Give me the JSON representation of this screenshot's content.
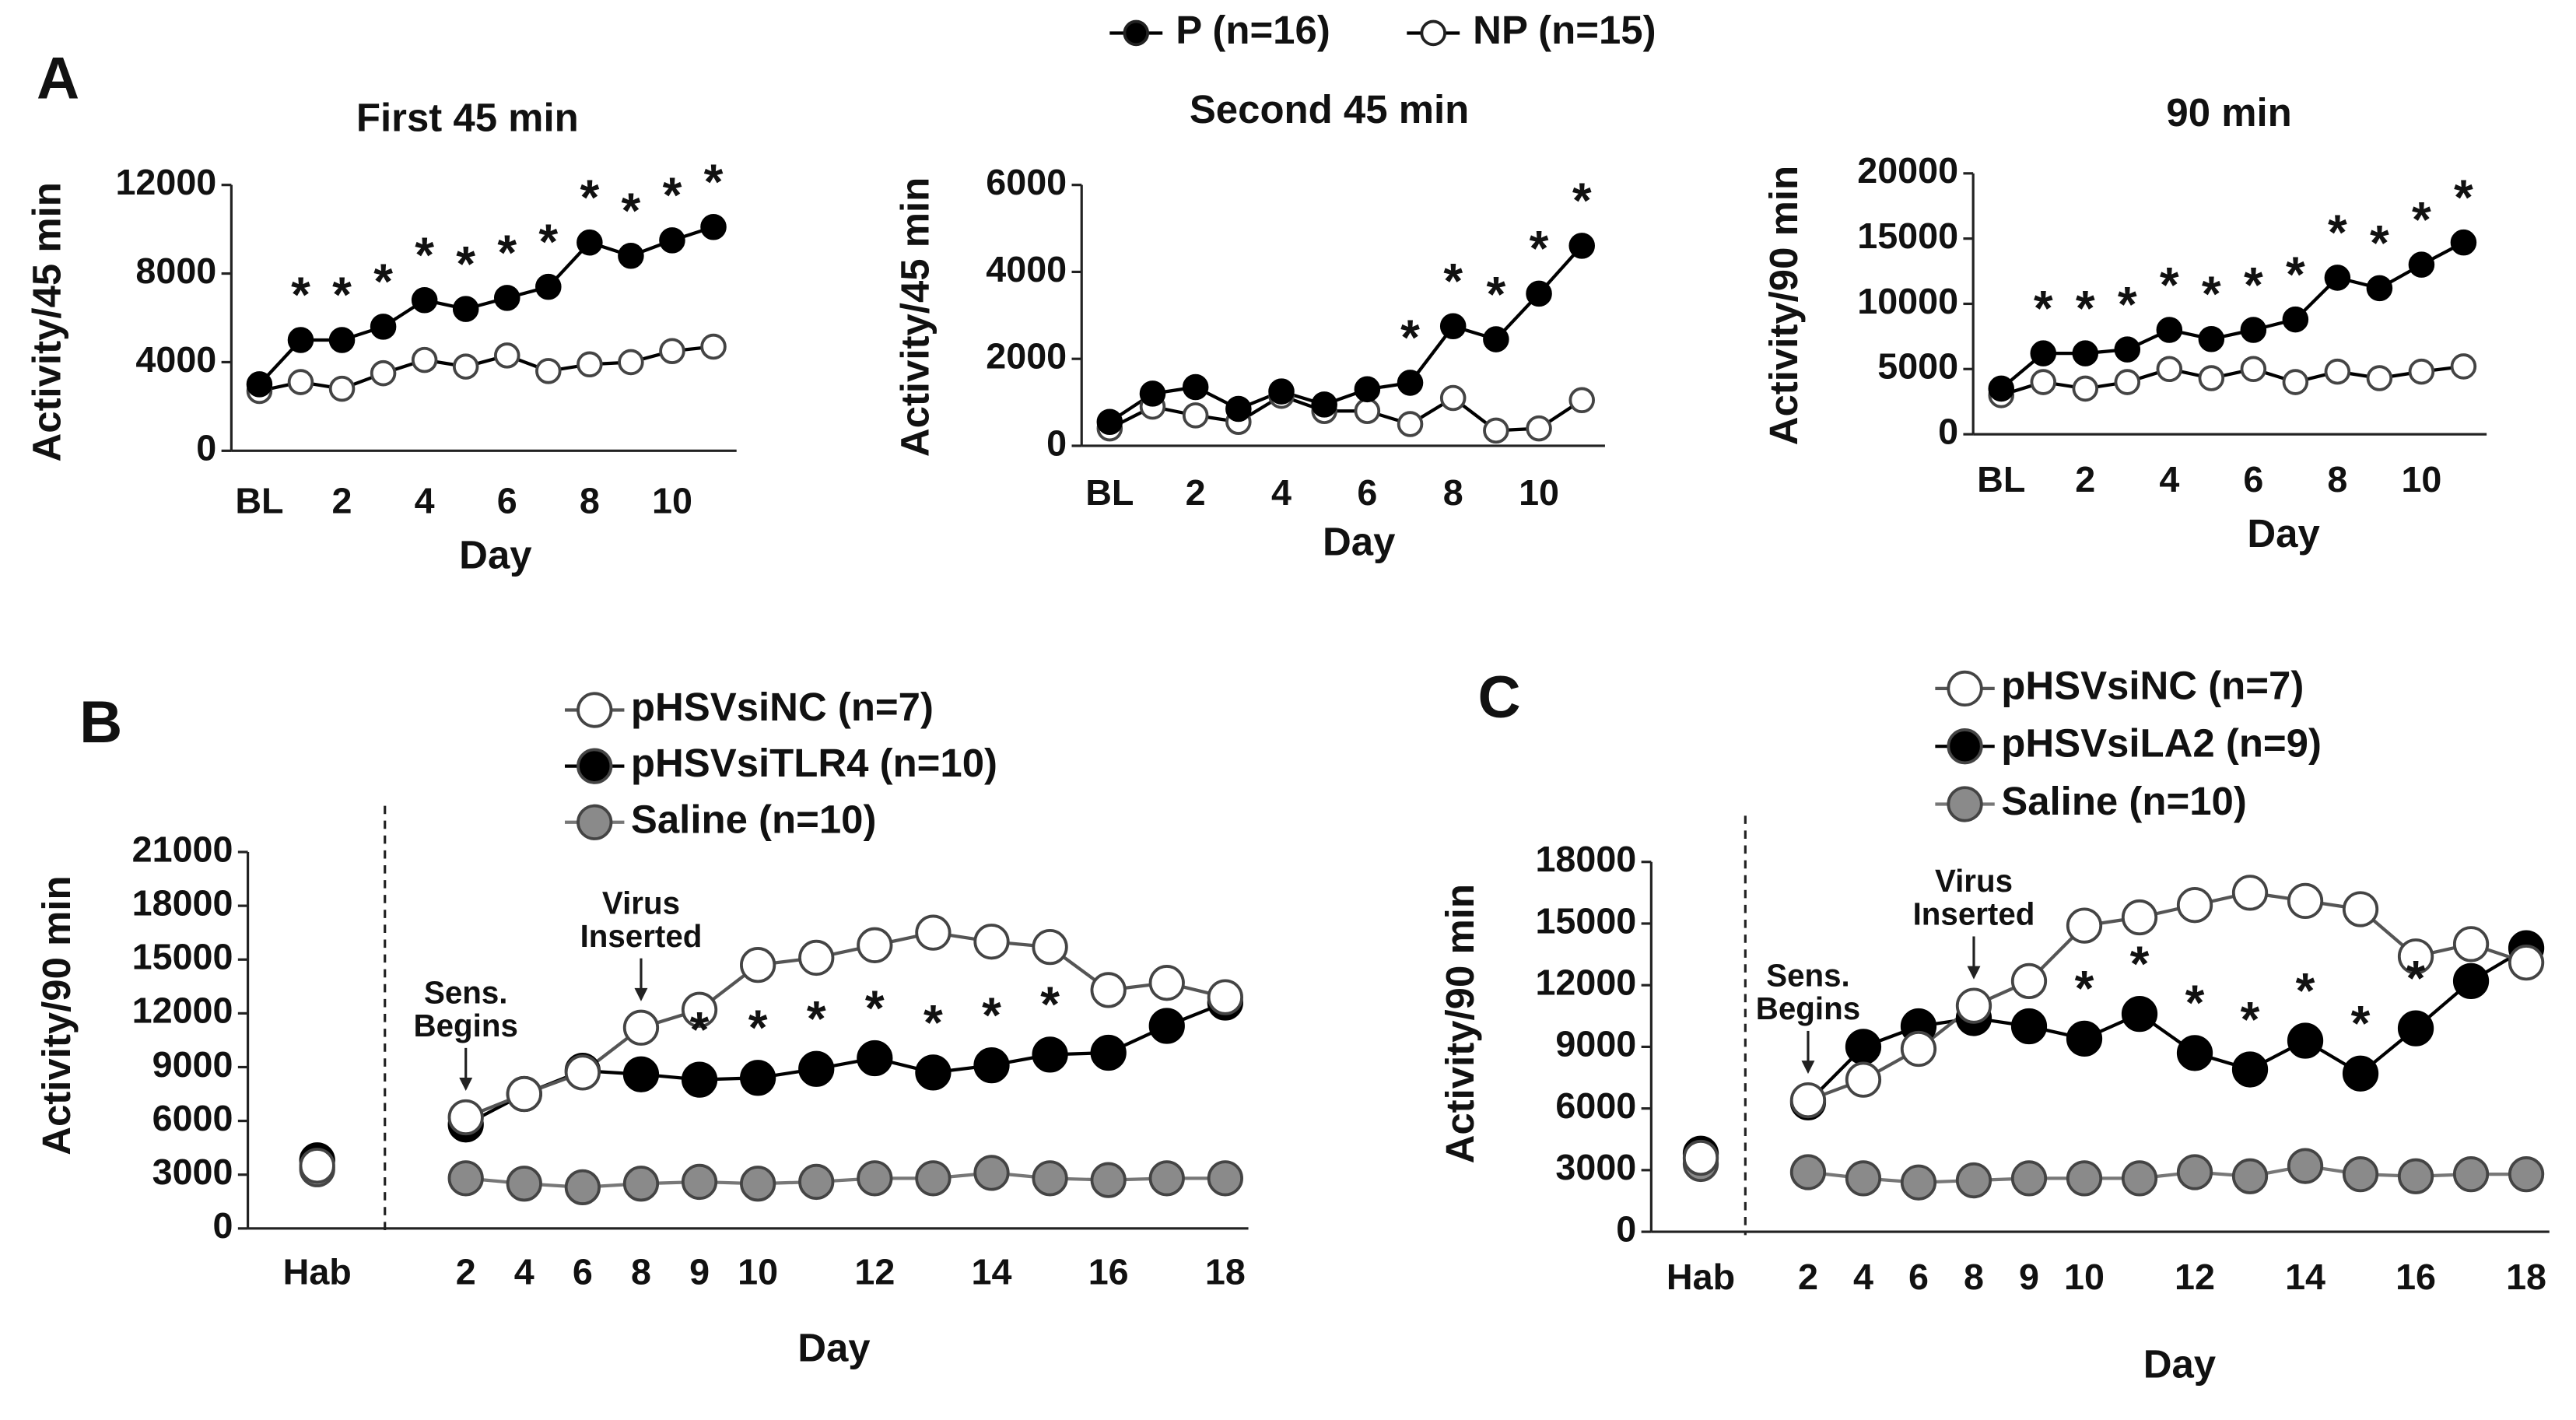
{
  "panels": [
    "A",
    "B",
    "C"
  ],
  "chart_data": [
    {
      "type": "line",
      "title": "First 45 min",
      "ylabel": "Activity/45 min",
      "xlabel": "Day",
      "categories": [
        "BL",
        null,
        "2",
        null,
        "4",
        null,
        "6",
        null,
        "8",
        null,
        "10",
        null
      ],
      "ylim": [
        0,
        12000
      ],
      "yticks": [
        0,
        4000,
        8000,
        12000
      ],
      "series": [
        {
          "name": "P (n=16)",
          "color": "#000000",
          "line_color": "#000000",
          "values": [
            3000,
            5000,
            5000,
            5600,
            6800,
            6400,
            6900,
            7400,
            9400,
            8800,
            9500,
            10100
          ],
          "significance": [
            null,
            "*",
            "*",
            "*",
            "*",
            "*",
            "*",
            "*",
            "*",
            "*",
            "*",
            "*"
          ]
        },
        {
          "name": "NP (n=15)",
          "color": "#ffffff",
          "line_color": "#000000",
          "values": [
            2700,
            3100,
            2800,
            3500,
            4100,
            3800,
            4300,
            3600,
            3900,
            4000,
            4500,
            4700
          ]
        }
      ]
    },
    {
      "type": "line",
      "title": "Second 45 min",
      "ylabel": "Activity/45 min",
      "xlabel": "Day",
      "categories": [
        "BL",
        null,
        "2",
        null,
        "4",
        null,
        "6",
        null,
        "8",
        null,
        "10",
        null
      ],
      "ylim": [
        0,
        6000
      ],
      "yticks": [
        0,
        2000,
        4000,
        6000
      ],
      "series": [
        {
          "color": "#000000",
          "line_color": "#000000",
          "values": [
            550,
            1200,
            1350,
            850,
            1250,
            950,
            1300,
            1450,
            2750,
            2450,
            3500,
            4600
          ],
          "significance": [
            null,
            null,
            null,
            null,
            null,
            null,
            null,
            "*",
            "*",
            "*",
            "*",
            "*"
          ]
        },
        {
          "color": "#ffffff",
          "line_color": "#000000",
          "values": [
            400,
            900,
            700,
            550,
            1150,
            800,
            800,
            500,
            1100,
            350,
            400,
            1050
          ]
        }
      ]
    },
    {
      "type": "line",
      "title": "90 min",
      "ylabel": "Activity/90 min",
      "xlabel": "Day",
      "categories": [
        "BL",
        null,
        "2",
        null,
        "4",
        null,
        "6",
        null,
        "8",
        null,
        "10",
        null
      ],
      "ylim": [
        0,
        20000
      ],
      "yticks": [
        0,
        5000,
        10000,
        15000,
        20000
      ],
      "series": [
        {
          "color": "#000000",
          "line_color": "#000000",
          "values": [
            3500,
            6200,
            6200,
            6500,
            8000,
            7300,
            8000,
            8800,
            12000,
            11200,
            13000,
            14700
          ],
          "significance": [
            null,
            "*",
            "*",
            "*",
            "*",
            "*",
            "*",
            "*",
            "*",
            "*",
            "*",
            "*"
          ]
        },
        {
          "color": "#ffffff",
          "line_color": "#000000",
          "values": [
            3000,
            4000,
            3500,
            4000,
            5000,
            4300,
            5000,
            4000,
            4800,
            4300,
            4800,
            5200
          ]
        }
      ]
    },
    {
      "type": "line",
      "ylabel": "Activity/90 min",
      "xlabel": "Day",
      "divider": true,
      "categories": [
        "Hab",
        "2",
        "4",
        "6",
        "8",
        "9",
        "10",
        null,
        "12",
        null,
        "14",
        null,
        "16",
        null,
        "18"
      ],
      "ylim": [
        0,
        21000
      ],
      "yticks": [
        0,
        3000,
        6000,
        9000,
        12000,
        15000,
        18000,
        21000
      ],
      "series": [
        {
          "name": "pHSVsiNC (n=7)",
          "color": "#ffffff",
          "line_color": "#555555",
          "values": [
            3500,
            6200,
            7500,
            8700,
            11200,
            12200,
            14700,
            15100,
            15800,
            16500,
            16000,
            15700,
            13300,
            13700,
            12900
          ]
        },
        {
          "name": "pHSVsiTLR4 (n=10)",
          "color": "#000000",
          "line_color": "#000000",
          "values": [
            3800,
            5800,
            7500,
            8800,
            8600,
            8300,
            8400,
            8900,
            9500,
            8700,
            9100,
            9700,
            9800,
            11300,
            12600
          ],
          "significance": [
            null,
            null,
            null,
            null,
            null,
            "*",
            "*",
            "*",
            "*",
            "*",
            "*",
            "*",
            null,
            null,
            null
          ]
        },
        {
          "name": "Saline (n=10)",
          "color": "#8a8a8a",
          "line_color": "#777777",
          "values": [
            3300,
            2800,
            2500,
            2300,
            2500,
            2600,
            2500,
            2600,
            2800,
            2800,
            3100,
            2800,
            2700,
            2800,
            2800
          ]
        }
      ],
      "annotations": [
        {
          "lines": [
            "Sens.",
            "Begins"
          ],
          "x": "2"
        },
        {
          "lines": [
            "Virus",
            "Inserted"
          ],
          "x": "8"
        }
      ]
    },
    {
      "type": "line",
      "ylabel": "Activity/90 min",
      "xlabel": "Day",
      "divider": true,
      "categories": [
        "Hab",
        "2",
        "4",
        "6",
        "8",
        "9",
        "10",
        null,
        "12",
        null,
        "14",
        null,
        "16",
        null,
        "18"
      ],
      "ylim": [
        0,
        18000
      ],
      "yticks": [
        0,
        3000,
        6000,
        9000,
        12000,
        15000,
        18000
      ],
      "series": [
        {
          "name": "pHSVsiNC (n=7)",
          "color": "#ffffff",
          "line_color": "#555555",
          "values": [
            3600,
            6400,
            7400,
            8900,
            11000,
            12200,
            14900,
            15300,
            15900,
            16500,
            16100,
            15700,
            13400,
            14000,
            13100
          ]
        },
        {
          "name": "pHSVsiLA2 (n=9)",
          "color": "#000000",
          "line_color": "#000000",
          "values": [
            3800,
            6300,
            9000,
            10000,
            10400,
            10000,
            9400,
            10600,
            8700,
            7900,
            9300,
            7700,
            9900,
            12200,
            13800
          ],
          "significance": [
            null,
            null,
            null,
            null,
            null,
            null,
            "*",
            "*",
            "*",
            "*",
            "*",
            "*",
            "*",
            null,
            null
          ]
        },
        {
          "name": "Saline (n=10)",
          "color": "#8a8a8a",
          "line_color": "#777777",
          "values": [
            3300,
            2900,
            2600,
            2400,
            2500,
            2600,
            2600,
            2600,
            2900,
            2700,
            3200,
            2800,
            2700,
            2800,
            2800
          ]
        }
      ],
      "annotations": [
        {
          "lines": [
            "Sens.",
            "Begins"
          ],
          "x": "2"
        },
        {
          "lines": [
            "Virus",
            "Inserted"
          ],
          "x": "8"
        }
      ]
    }
  ]
}
